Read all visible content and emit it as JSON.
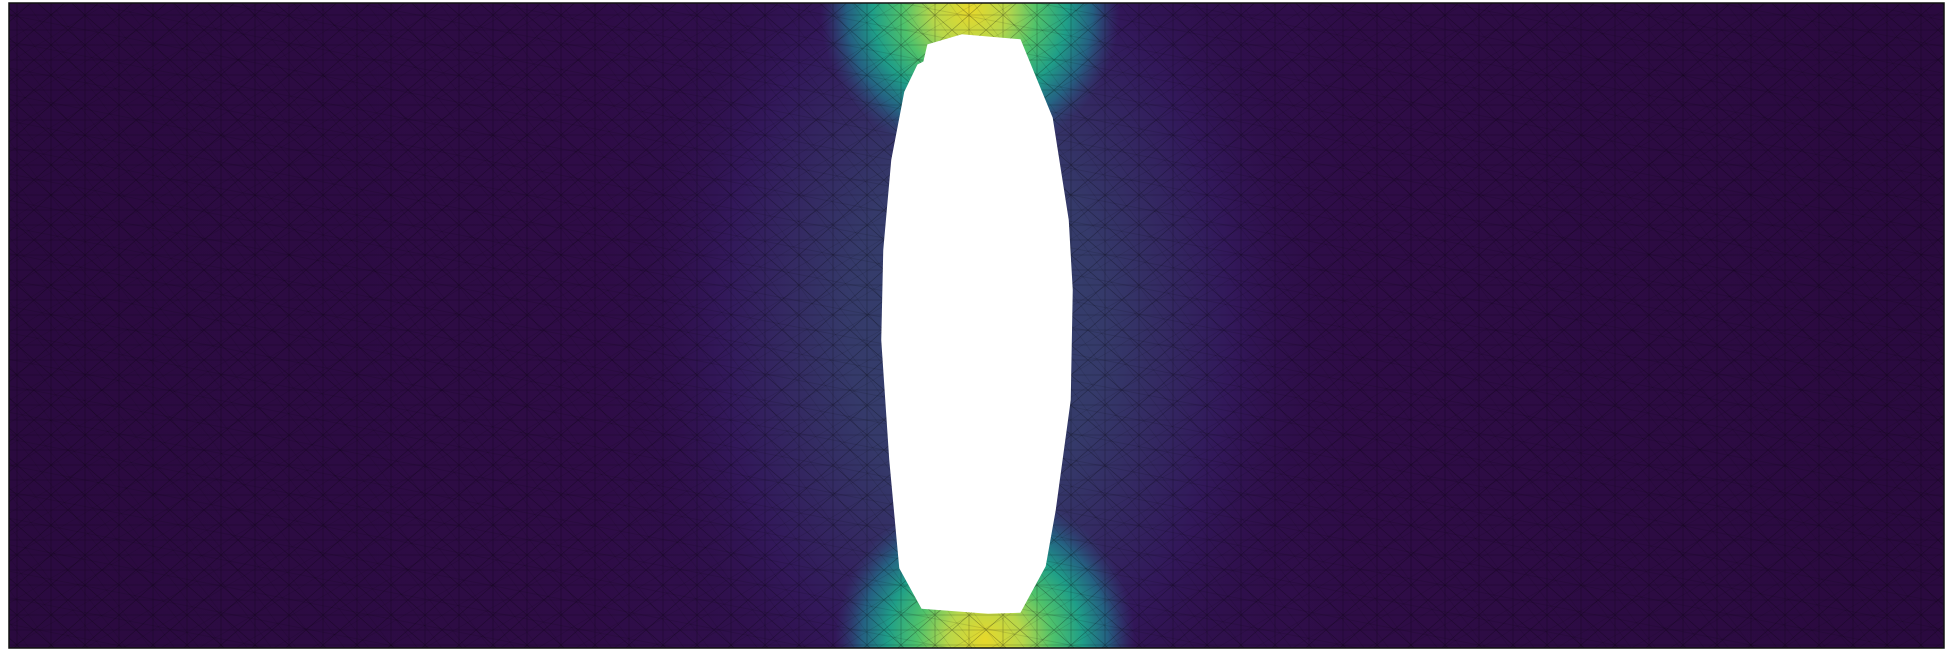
{
  "figure": {
    "background": "#ffffff",
    "colormap": "viridis",
    "colormap_stops": [
      "#2d0a3e",
      "#33125a",
      "#36306a",
      "#2f4a7c",
      "#21718b",
      "#1f9e88",
      "#4fc26b",
      "#b7d74b",
      "#e8d82a"
    ],
    "mesh_edge_color": "#000000",
    "border_color": "#111111",
    "hole_fill": "#ffffff",
    "mesh": "triangular",
    "hole_shape": "elongated vertical slot"
  }
}
